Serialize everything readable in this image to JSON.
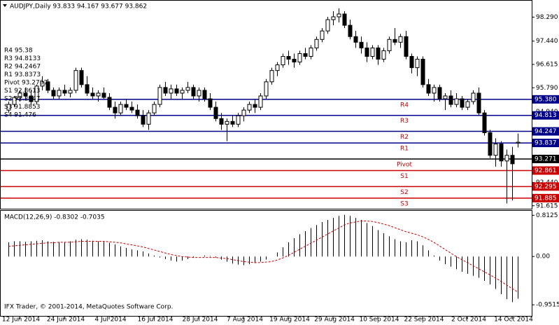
{
  "chart_data": [
    {
      "type": "candlestick",
      "title": "AUDJPY,Daily  93.833 94.167 93.677 93.862",
      "categories": [
        null,
        null,
        "12 Jun 2014",
        null,
        null,
        null,
        null,
        null,
        null,
        null,
        "24 Jun 2014",
        null,
        null,
        null,
        null,
        null,
        null,
        null,
        "4 Jul 2014",
        null,
        null,
        null,
        null,
        null,
        null,
        null,
        "16 Jul 2014",
        null,
        null,
        null,
        null,
        null,
        null,
        null,
        "28 Jul 2014",
        null,
        null,
        null,
        null,
        null,
        null,
        null,
        "7 Aug 2014",
        null,
        null,
        null,
        null,
        null,
        null,
        null,
        "19 Aug 2014",
        null,
        null,
        null,
        null,
        null,
        null,
        null,
        "29 Aug 2014",
        null,
        null,
        null,
        null,
        null,
        null,
        null,
        "10 Sep 2014",
        null,
        null,
        null,
        null,
        null,
        null,
        null,
        "22 Sep 2014",
        null,
        null,
        null,
        null,
        null,
        null,
        null,
        "2 Oct 2014",
        null,
        null,
        null,
        null,
        null,
        null,
        null,
        "14 Oct 2014",
        null
      ],
      "ohlc": [
        [
          95.0,
          95.3,
          94.9,
          95.2
        ],
        [
          95.2,
          95.5,
          95.1,
          95.45
        ],
        [
          95.45,
          95.7,
          95.3,
          95.6
        ],
        [
          95.6,
          95.8,
          95.4,
          95.5
        ],
        [
          95.5,
          95.7,
          95.2,
          95.3
        ],
        [
          95.3,
          95.9,
          95.2,
          95.85
        ],
        [
          95.85,
          96.2,
          95.7,
          96.0
        ],
        [
          96.0,
          96.1,
          95.6,
          95.7
        ],
        [
          95.7,
          95.8,
          95.4,
          95.5
        ],
        [
          95.5,
          95.8,
          95.4,
          95.7
        ],
        [
          95.7,
          95.9,
          95.5,
          95.6
        ],
        [
          95.6,
          95.8,
          95.45,
          95.7
        ],
        [
          95.7,
          96.5,
          95.6,
          96.4
        ],
        [
          96.4,
          96.5,
          95.8,
          95.9
        ],
        [
          95.9,
          96.2,
          95.5,
          95.6
        ],
        [
          95.6,
          95.8,
          95.4,
          95.5
        ],
        [
          95.5,
          95.7,
          95.3,
          95.6
        ],
        [
          95.6,
          95.8,
          95.4,
          95.45
        ],
        [
          95.45,
          95.6,
          95.0,
          95.1
        ],
        [
          95.1,
          95.3,
          94.7,
          94.9
        ],
        [
          94.9,
          95.3,
          94.8,
          95.2
        ],
        [
          95.2,
          95.4,
          95.0,
          95.1
        ],
        [
          95.1,
          95.3,
          94.9,
          95.0
        ],
        [
          95.0,
          95.2,
          94.7,
          94.8
        ],
        [
          94.8,
          95.0,
          94.4,
          94.5
        ],
        [
          94.5,
          95.0,
          94.3,
          94.9
        ],
        [
          94.9,
          95.3,
          94.8,
          95.2
        ],
        [
          95.2,
          95.9,
          95.1,
          95.8
        ],
        [
          95.8,
          96.0,
          95.5,
          95.6
        ],
        [
          95.6,
          95.9,
          95.4,
          95.75
        ],
        [
          95.75,
          95.9,
          95.5,
          95.6
        ],
        [
          95.6,
          95.8,
          95.4,
          95.7
        ],
        [
          95.7,
          96.0,
          95.6,
          95.8
        ],
        [
          95.8,
          95.9,
          95.4,
          95.5
        ],
        [
          95.5,
          95.8,
          95.3,
          95.7
        ],
        [
          95.7,
          95.8,
          95.3,
          95.4
        ],
        [
          95.4,
          95.6,
          95.0,
          95.1
        ],
        [
          95.1,
          95.3,
          94.6,
          94.7
        ],
        [
          94.7,
          94.9,
          94.3,
          94.5
        ],
        [
          94.5,
          94.7,
          93.9,
          94.6
        ],
        [
          94.6,
          94.8,
          94.4,
          94.5
        ],
        [
          94.5,
          94.9,
          94.4,
          94.8
        ],
        [
          94.8,
          95.1,
          94.6,
          95.0
        ],
        [
          95.0,
          95.3,
          94.9,
          95.2
        ],
        [
          95.2,
          95.4,
          94.9,
          95.1
        ],
        [
          95.1,
          95.6,
          95.0,
          95.5
        ],
        [
          95.5,
          96.1,
          95.4,
          96.0
        ],
        [
          96.0,
          96.5,
          95.9,
          96.4
        ],
        [
          96.4,
          96.7,
          96.2,
          96.6
        ],
        [
          96.6,
          97.0,
          96.5,
          96.9
        ],
        [
          96.9,
          97.1,
          96.6,
          96.8
        ],
        [
          96.8,
          97.0,
          96.5,
          96.7
        ],
        [
          96.7,
          97.1,
          96.6,
          97.0
        ],
        [
          97.0,
          97.2,
          96.8,
          96.9
        ],
        [
          96.9,
          97.3,
          96.8,
          97.2
        ],
        [
          97.2,
          97.6,
          97.1,
          97.5
        ],
        [
          97.5,
          97.9,
          97.4,
          97.8
        ],
        [
          97.8,
          98.3,
          97.7,
          98.2
        ],
        [
          98.2,
          98.5,
          98.0,
          98.3
        ],
        [
          98.3,
          98.6,
          98.1,
          98.4
        ],
        [
          98.4,
          98.5,
          97.9,
          98.0
        ],
        [
          98.0,
          98.2,
          97.5,
          97.6
        ],
        [
          97.6,
          97.8,
          97.2,
          97.4
        ],
        [
          97.4,
          97.6,
          97.0,
          97.2
        ],
        [
          97.2,
          97.4,
          96.7,
          96.9
        ],
        [
          96.9,
          97.3,
          96.8,
          97.2
        ],
        [
          97.2,
          97.3,
          96.6,
          96.8
        ],
        [
          96.8,
          97.2,
          96.7,
          97.1
        ],
        [
          97.1,
          97.6,
          97.0,
          97.5
        ],
        [
          97.5,
          97.9,
          97.3,
          97.4
        ],
        [
          97.4,
          97.7,
          97.2,
          97.6
        ],
        [
          97.6,
          97.8,
          96.8,
          96.9
        ],
        [
          96.9,
          97.0,
          96.3,
          96.5
        ],
        [
          96.5,
          96.9,
          96.2,
          96.8
        ],
        [
          96.8,
          96.9,
          95.8,
          95.9
        ],
        [
          95.9,
          96.1,
          95.5,
          95.6
        ],
        [
          95.6,
          95.9,
          95.3,
          95.8
        ],
        [
          95.8,
          95.9,
          95.3,
          95.4
        ],
        [
          95.4,
          95.6,
          95.0,
          95.5
        ],
        [
          95.5,
          95.7,
          95.1,
          95.2
        ],
        [
          95.2,
          95.6,
          95.1,
          95.4
        ],
        [
          95.4,
          95.5,
          95.0,
          95.1
        ],
        [
          95.1,
          95.4,
          95.0,
          95.3
        ],
        [
          95.3,
          95.7,
          95.2,
          95.6
        ],
        [
          95.6,
          95.8,
          94.8,
          94.9
        ],
        [
          94.9,
          95.0,
          94.1,
          94.2
        ],
        [
          94.2,
          94.3,
          93.3,
          93.4
        ],
        [
          93.4,
          94.0,
          93.0,
          93.8
        ],
        [
          93.8,
          93.9,
          93.0,
          93.2
        ],
        [
          93.2,
          93.6,
          91.7,
          93.4
        ],
        [
          93.4,
          93.7,
          91.8,
          93.1
        ],
        [
          93.833,
          94.167,
          93.677,
          93.862
        ]
      ],
      "ylim": [
        91.51,
        98.87
      ],
      "yticks": [
        {
          "value": 98.29,
          "label": "98.290"
        },
        {
          "value": 97.44,
          "label": "97.440"
        },
        {
          "value": 96.615,
          "label": "96.615"
        },
        {
          "value": 95.79,
          "label": "95.790"
        },
        {
          "value": 94.94,
          "label": "94.940"
        },
        {
          "value": 92.44,
          "label": "92.440"
        },
        91.615
      ],
      "levels": [
        {
          "name": "R4",
          "value": 95.38,
          "value_label": "95.380",
          "color": "#00008b"
        },
        {
          "name": "R3",
          "value": 94.813,
          "value_label": "94.813",
          "color": "#00008b"
        },
        {
          "name": "R2",
          "value": 94.247,
          "value_label": "94.247",
          "color": "#00008b"
        },
        {
          "name": "R1",
          "value": 93.837,
          "value_label": "93.837",
          "color": "#00008b"
        },
        {
          "name": "Pivot",
          "value": 93.271,
          "value_label": "93.271",
          "color": "#000000"
        },
        {
          "name": "S1",
          "value": 92.861,
          "value_label": "92.861",
          "color": "#cc0000"
        },
        {
          "name": "S2",
          "value": 92.295,
          "value_label": "92.295",
          "color": "#cc0000"
        },
        {
          "name": "S3",
          "value": 91.885,
          "value_label": "91.885",
          "color": "#cc0000"
        }
      ],
      "annotations": [
        "R4 95.38",
        "R3 94.8133",
        "R2 94.2467",
        "R1 93.8373",
        "Pivot 93.2707",
        "S1 92.8613",
        "S2 92.2947",
        "S3 91.8853",
        "S4 91.476"
      ]
    },
    {
      "type": "macd",
      "title": "MACD(12,26,9) -0.8302 -0.7035",
      "series": [
        {
          "name": "MACD",
          "color": "#000000",
          "values": [
            0.28,
            0.3,
            0.3,
            0.29,
            0.3,
            0.31,
            0.32,
            0.3,
            0.29,
            0.28,
            0.28,
            0.3,
            0.33,
            0.34,
            0.33,
            0.31,
            0.3,
            0.29,
            0.27,
            0.24,
            0.2,
            0.17,
            0.14,
            0.12,
            0.1,
            0.06,
            0.02,
            -0.02,
            -0.05,
            -0.08,
            -0.1,
            -0.08,
            -0.05,
            -0.02,
            0.0,
            0.02,
            0.01,
            -0.02,
            -0.06,
            -0.1,
            -0.14,
            -0.16,
            -0.17,
            -0.15,
            -0.13,
            -0.1,
            -0.06,
            0.0,
            0.08,
            0.18,
            0.28,
            0.36,
            0.44,
            0.5,
            0.56,
            0.62,
            0.68,
            0.72,
            0.76,
            0.8,
            0.82,
            0.8,
            0.76,
            0.72,
            0.66,
            0.6,
            0.52,
            0.46,
            0.4,
            0.34,
            0.3,
            0.28,
            0.32,
            0.3,
            0.22,
            0.12,
            0.02,
            -0.08,
            -0.15,
            -0.2,
            -0.25,
            -0.3,
            -0.34,
            -0.38,
            -0.42,
            -0.48,
            -0.55,
            -0.64,
            -0.74,
            -0.84,
            -0.9,
            -0.83
          ]
        },
        {
          "name": "Signal",
          "color": "#cc0000",
          "values": [
            0.2,
            0.21,
            0.22,
            0.23,
            0.24,
            0.25,
            0.26,
            0.27,
            0.27,
            0.28,
            0.28,
            0.28,
            0.29,
            0.3,
            0.3,
            0.3,
            0.3,
            0.3,
            0.29,
            0.28,
            0.27,
            0.25,
            0.23,
            0.21,
            0.19,
            0.16,
            0.13,
            0.1,
            0.07,
            0.04,
            0.02,
            0.0,
            -0.01,
            -0.02,
            -0.02,
            -0.02,
            -0.02,
            -0.02,
            -0.03,
            -0.04,
            -0.06,
            -0.08,
            -0.1,
            -0.11,
            -0.12,
            -0.12,
            -0.11,
            -0.1,
            -0.07,
            -0.03,
            0.02,
            0.08,
            0.14,
            0.2,
            0.26,
            0.32,
            0.38,
            0.44,
            0.5,
            0.56,
            0.62,
            0.66,
            0.68,
            0.7,
            0.7,
            0.69,
            0.67,
            0.64,
            0.61,
            0.57,
            0.53,
            0.49,
            0.46,
            0.43,
            0.39,
            0.34,
            0.28,
            0.21,
            0.14,
            0.07,
            0.0,
            -0.06,
            -0.12,
            -0.18,
            -0.24,
            -0.3,
            -0.36,
            -0.42,
            -0.49,
            -0.56,
            -0.63,
            -0.7
          ]
        }
      ],
      "ylim": [
        -1.17,
        0.9
      ],
      "yticks": [
        0.8125,
        {
          "value": 0,
          "label": "0.00"
        },
        -0.9515
      ]
    }
  ],
  "footer": "IFX Trader, © 2001-2014, MetaQuotes Software Corp."
}
